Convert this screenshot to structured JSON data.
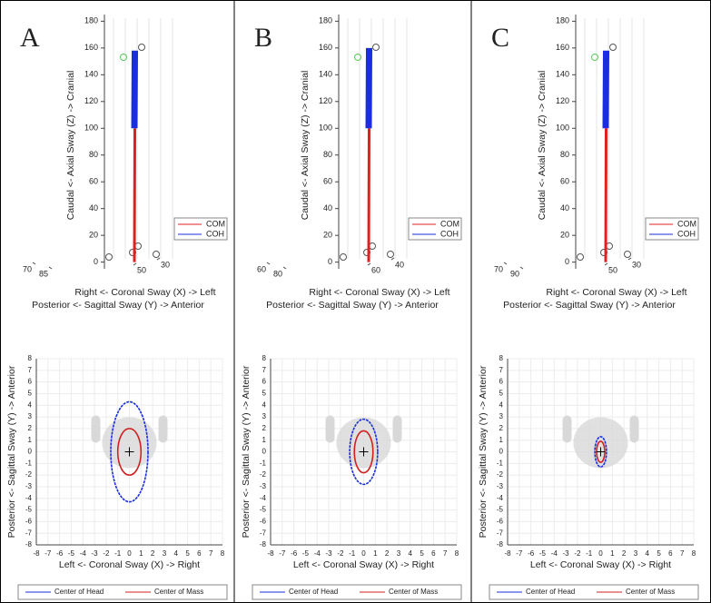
{
  "chart_data": [
    {
      "type": "line3d",
      "panel": "A",
      "zlabel": "Caudal <- Axial Sway (Z) -> Cranial",
      "xlabel": "Right <- Coronal Sway (X) -> Left",
      "ylabel": "Posterior <- Sagittal Sway (Y) -> Anterior",
      "zlim": [
        -5,
        185
      ],
      "zticks": [
        0,
        20,
        40,
        60,
        80,
        100,
        120,
        140,
        160,
        180
      ],
      "xticks": [
        70,
        85
      ],
      "yticks": [
        50,
        30
      ],
      "series": [
        {
          "name": "COM",
          "color": "#e02020",
          "values": [
            0,
            100
          ]
        },
        {
          "name": "COH",
          "color": "#1a2ee0",
          "values": [
            100,
            158
          ]
        }
      ]
    },
    {
      "type": "ellipse",
      "xlabel": "Left <- Coronal Sway (X) -> Right",
      "ylabel": "Posterior <- Sagittal Sway (Y) -> Anterior",
      "xlim": [
        -8,
        8
      ],
      "ylim": [
        -8,
        8
      ],
      "xticks": [
        -8,
        -7,
        -6,
        -5,
        -4,
        -3,
        -2,
        -1,
        0,
        1,
        2,
        3,
        4,
        5,
        6,
        7,
        8
      ],
      "yticks": [
        -8,
        -7,
        -6,
        -5,
        -4,
        -3,
        -2,
        -1,
        0,
        1,
        2,
        3,
        4,
        5,
        6,
        7,
        8
      ],
      "series": [
        {
          "name": "Center of Head",
          "color": "#1a2ee0",
          "center": [
            0,
            0
          ],
          "radii": [
            1.6,
            4.3
          ]
        },
        {
          "name": "Center of Mass",
          "color": "#d02020",
          "center": [
            0,
            0
          ],
          "radii": [
            1.0,
            2.0
          ]
        }
      ]
    },
    {
      "type": "line3d",
      "panel": "B",
      "zlabel": "Caudal <- Axial Sway (Z) -> Cranial",
      "xlabel": "Right <- Coronal Sway (X) -> Left",
      "ylabel": "Posterior <- Sagittal Sway (Y) -> Anterior",
      "zlim": [
        -5,
        185
      ],
      "zticks": [
        0,
        20,
        40,
        60,
        80,
        100,
        120,
        140,
        160,
        180
      ],
      "xticks": [
        60,
        80
      ],
      "yticks": [
        60,
        40
      ],
      "series": [
        {
          "name": "COM",
          "color": "#e02020",
          "values": [
            0,
            100
          ]
        },
        {
          "name": "COH",
          "color": "#1a2ee0",
          "values": [
            100,
            160
          ]
        }
      ]
    },
    {
      "type": "ellipse",
      "xlabel": "Left <- Coronal Sway (X) -> Right",
      "ylabel": "Posterior <- Sagittal Sway (Y) -> Anterior",
      "xlim": [
        -8,
        8
      ],
      "ylim": [
        -8,
        8
      ],
      "xticks": [
        -8,
        -7,
        -6,
        -5,
        -4,
        -3,
        -2,
        -1,
        0,
        1,
        2,
        3,
        4,
        5,
        6,
        7,
        8
      ],
      "yticks": [
        -8,
        -7,
        -6,
        -5,
        -4,
        -3,
        -2,
        -1,
        0,
        1,
        2,
        3,
        4,
        5,
        6,
        7,
        8
      ],
      "series": [
        {
          "name": "Center of Head",
          "color": "#1a2ee0",
          "center": [
            0,
            0
          ],
          "radii": [
            1.2,
            2.8
          ]
        },
        {
          "name": "Center of Mass",
          "color": "#d02020",
          "center": [
            0,
            0
          ],
          "radii": [
            0.8,
            1.8
          ]
        }
      ]
    },
    {
      "type": "line3d",
      "panel": "C",
      "zlabel": "Caudal <- Axial Sway (Z) -> Cranial",
      "xlabel": "Right <- Coronal Sway (X) -> Left",
      "ylabel": "Posterior <- Sagittal Sway (Y) -> Anterior",
      "zlim": [
        -5,
        185
      ],
      "zticks": [
        0,
        20,
        40,
        60,
        80,
        100,
        120,
        140,
        160,
        180
      ],
      "xticks": [
        70,
        90
      ],
      "yticks": [
        50,
        30
      ],
      "series": [
        {
          "name": "COM",
          "color": "#e02020",
          "values": [
            0,
            100
          ]
        },
        {
          "name": "COH",
          "color": "#1a2ee0",
          "values": [
            100,
            158
          ]
        }
      ]
    },
    {
      "type": "ellipse",
      "xlabel": "Left <- Coronal Sway (X) -> Right",
      "ylabel": "Posterior <- Sagittal Sway (Y) -> Anterior",
      "xlim": [
        -8,
        8
      ],
      "ylim": [
        -8,
        8
      ],
      "xticks": [
        -8,
        -7,
        -6,
        -5,
        -4,
        -3,
        -2,
        -1,
        0,
        1,
        2,
        3,
        4,
        5,
        6,
        7,
        8
      ],
      "yticks": [
        -8,
        -7,
        -6,
        -5,
        -4,
        -3,
        -2,
        -1,
        0,
        1,
        2,
        3,
        4,
        5,
        6,
        7,
        8
      ],
      "series": [
        {
          "name": "Center of Head",
          "color": "#1a2ee0",
          "center": [
            0,
            0
          ],
          "radii": [
            0.5,
            1.3
          ]
        },
        {
          "name": "Center of Mass",
          "color": "#d02020",
          "center": [
            0,
            0
          ],
          "radii": [
            0.35,
            0.9
          ]
        }
      ]
    }
  ]
}
